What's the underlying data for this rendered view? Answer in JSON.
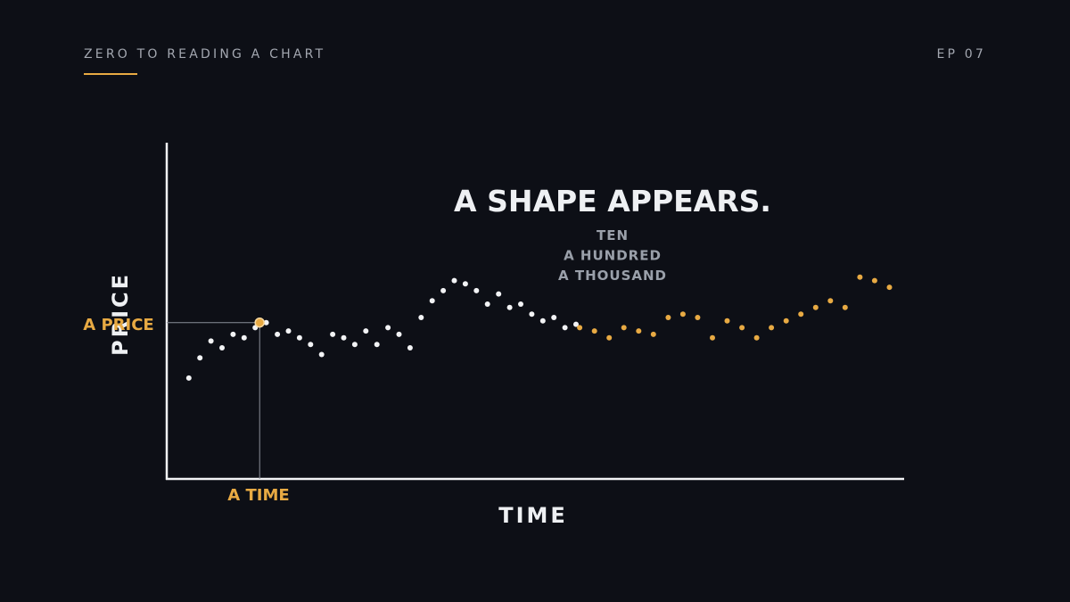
{
  "header": {
    "series_title": "ZERO TO READING A CHART",
    "episode": "EP 07"
  },
  "colors": {
    "background": "#0d0f16",
    "accent": "#e8aa43",
    "foreground": "#eef0f3",
    "muted": "#9aa0aa"
  },
  "chart_data": {
    "type": "scatter",
    "title": "A SHAPE APPEARS.",
    "subtitle_lines": [
      "TEN",
      "A HUNDRED",
      "A THOUSAND"
    ],
    "xlabel": "TIME",
    "ylabel": "PRICE",
    "xlim": [
      0,
      100
    ],
    "ylim": [
      0,
      100
    ],
    "grid": false,
    "annotations": {
      "marked_point": {
        "x": 12.6,
        "y": 46.5
      },
      "x_marker_label": "A TIME",
      "y_marker_label": "A PRICE"
    },
    "series": [
      {
        "color": "#f2f3f5",
        "x": [
          3,
          4.5,
          6,
          7.5,
          9,
          10.5,
          12,
          13.5,
          15,
          16.5,
          18,
          19.5,
          21,
          22.5,
          24,
          25.5,
          27,
          28.5,
          30,
          31.5,
          33,
          34.5,
          36,
          37.5,
          39,
          40.5,
          42,
          43.5,
          45,
          46.5,
          48,
          49.5,
          51,
          52.5,
          54,
          55.5
        ],
        "y": [
          30,
          36,
          41,
          39,
          43,
          42,
          45,
          46.5,
          43,
          44,
          42,
          40,
          37,
          43,
          42,
          40,
          44,
          40,
          45,
          43,
          39,
          48,
          53,
          56,
          59,
          58,
          56,
          52,
          55,
          51,
          52,
          49,
          47,
          48,
          45,
          46
        ]
      },
      {
        "color": "#e8aa43",
        "x": [
          56,
          58,
          60,
          62,
          64,
          66,
          68,
          70,
          72,
          74,
          76,
          78,
          80,
          82,
          84,
          86,
          88,
          90,
          92,
          94,
          96,
          98
        ],
        "y": [
          45,
          44,
          42,
          45,
          44,
          43,
          48,
          49,
          48,
          42,
          47,
          45,
          42,
          45,
          47,
          49,
          51,
          53,
          51,
          60,
          59,
          57
        ]
      }
    ]
  }
}
